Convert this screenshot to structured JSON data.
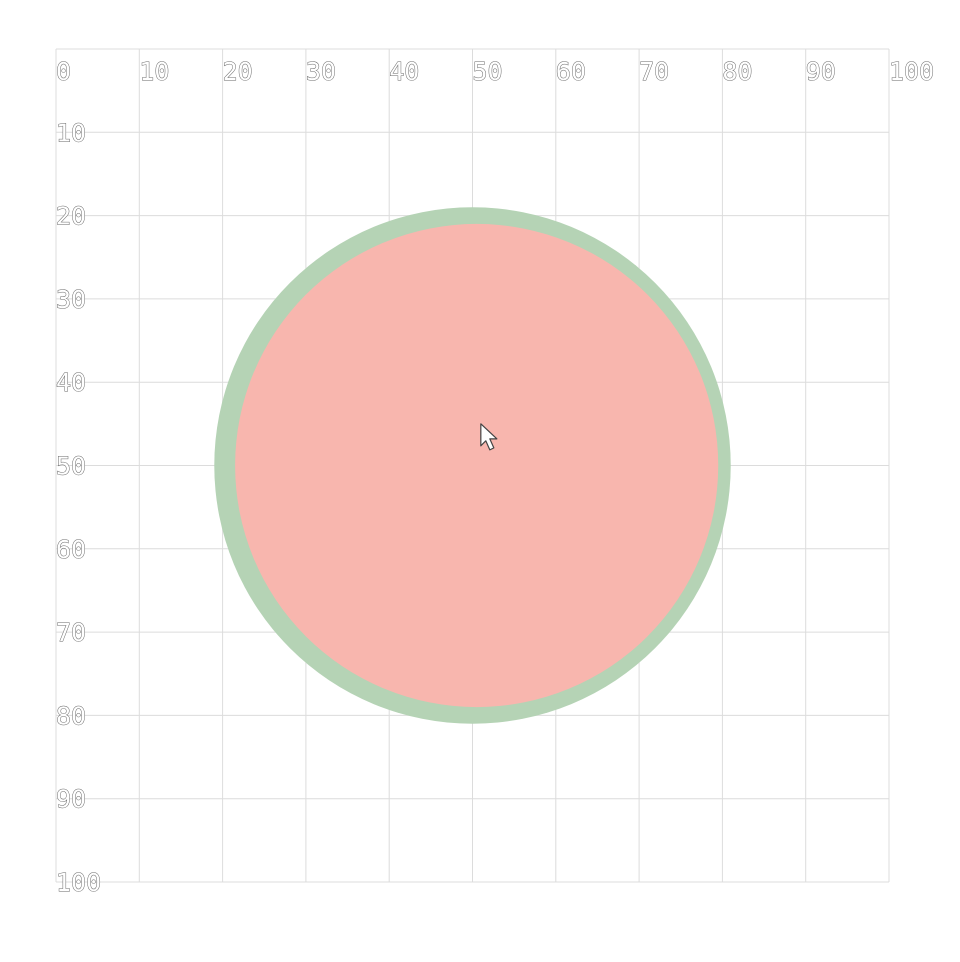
{
  "grid": {
    "x_ticks": [
      "0",
      "10",
      "20",
      "30",
      "40",
      "50",
      "60",
      "70",
      "80",
      "90",
      "100"
    ],
    "y_ticks": [
      "10",
      "20",
      "30",
      "40",
      "50",
      "60",
      "70",
      "80",
      "90",
      "100"
    ],
    "range": [
      0,
      100
    ],
    "line_color": "#dcdcdc",
    "label_color": "#666666"
  },
  "shapes": {
    "outer_circle": {
      "center": [
        50,
        50
      ],
      "radius": 31,
      "color": "#b5d3b5"
    },
    "inner_circle": {
      "center": [
        50.5,
        50
      ],
      "radius": 29,
      "color": "#f8b6ae"
    }
  },
  "cursor": {
    "type": "arrow-pointer",
    "position": [
      51,
      45
    ]
  }
}
